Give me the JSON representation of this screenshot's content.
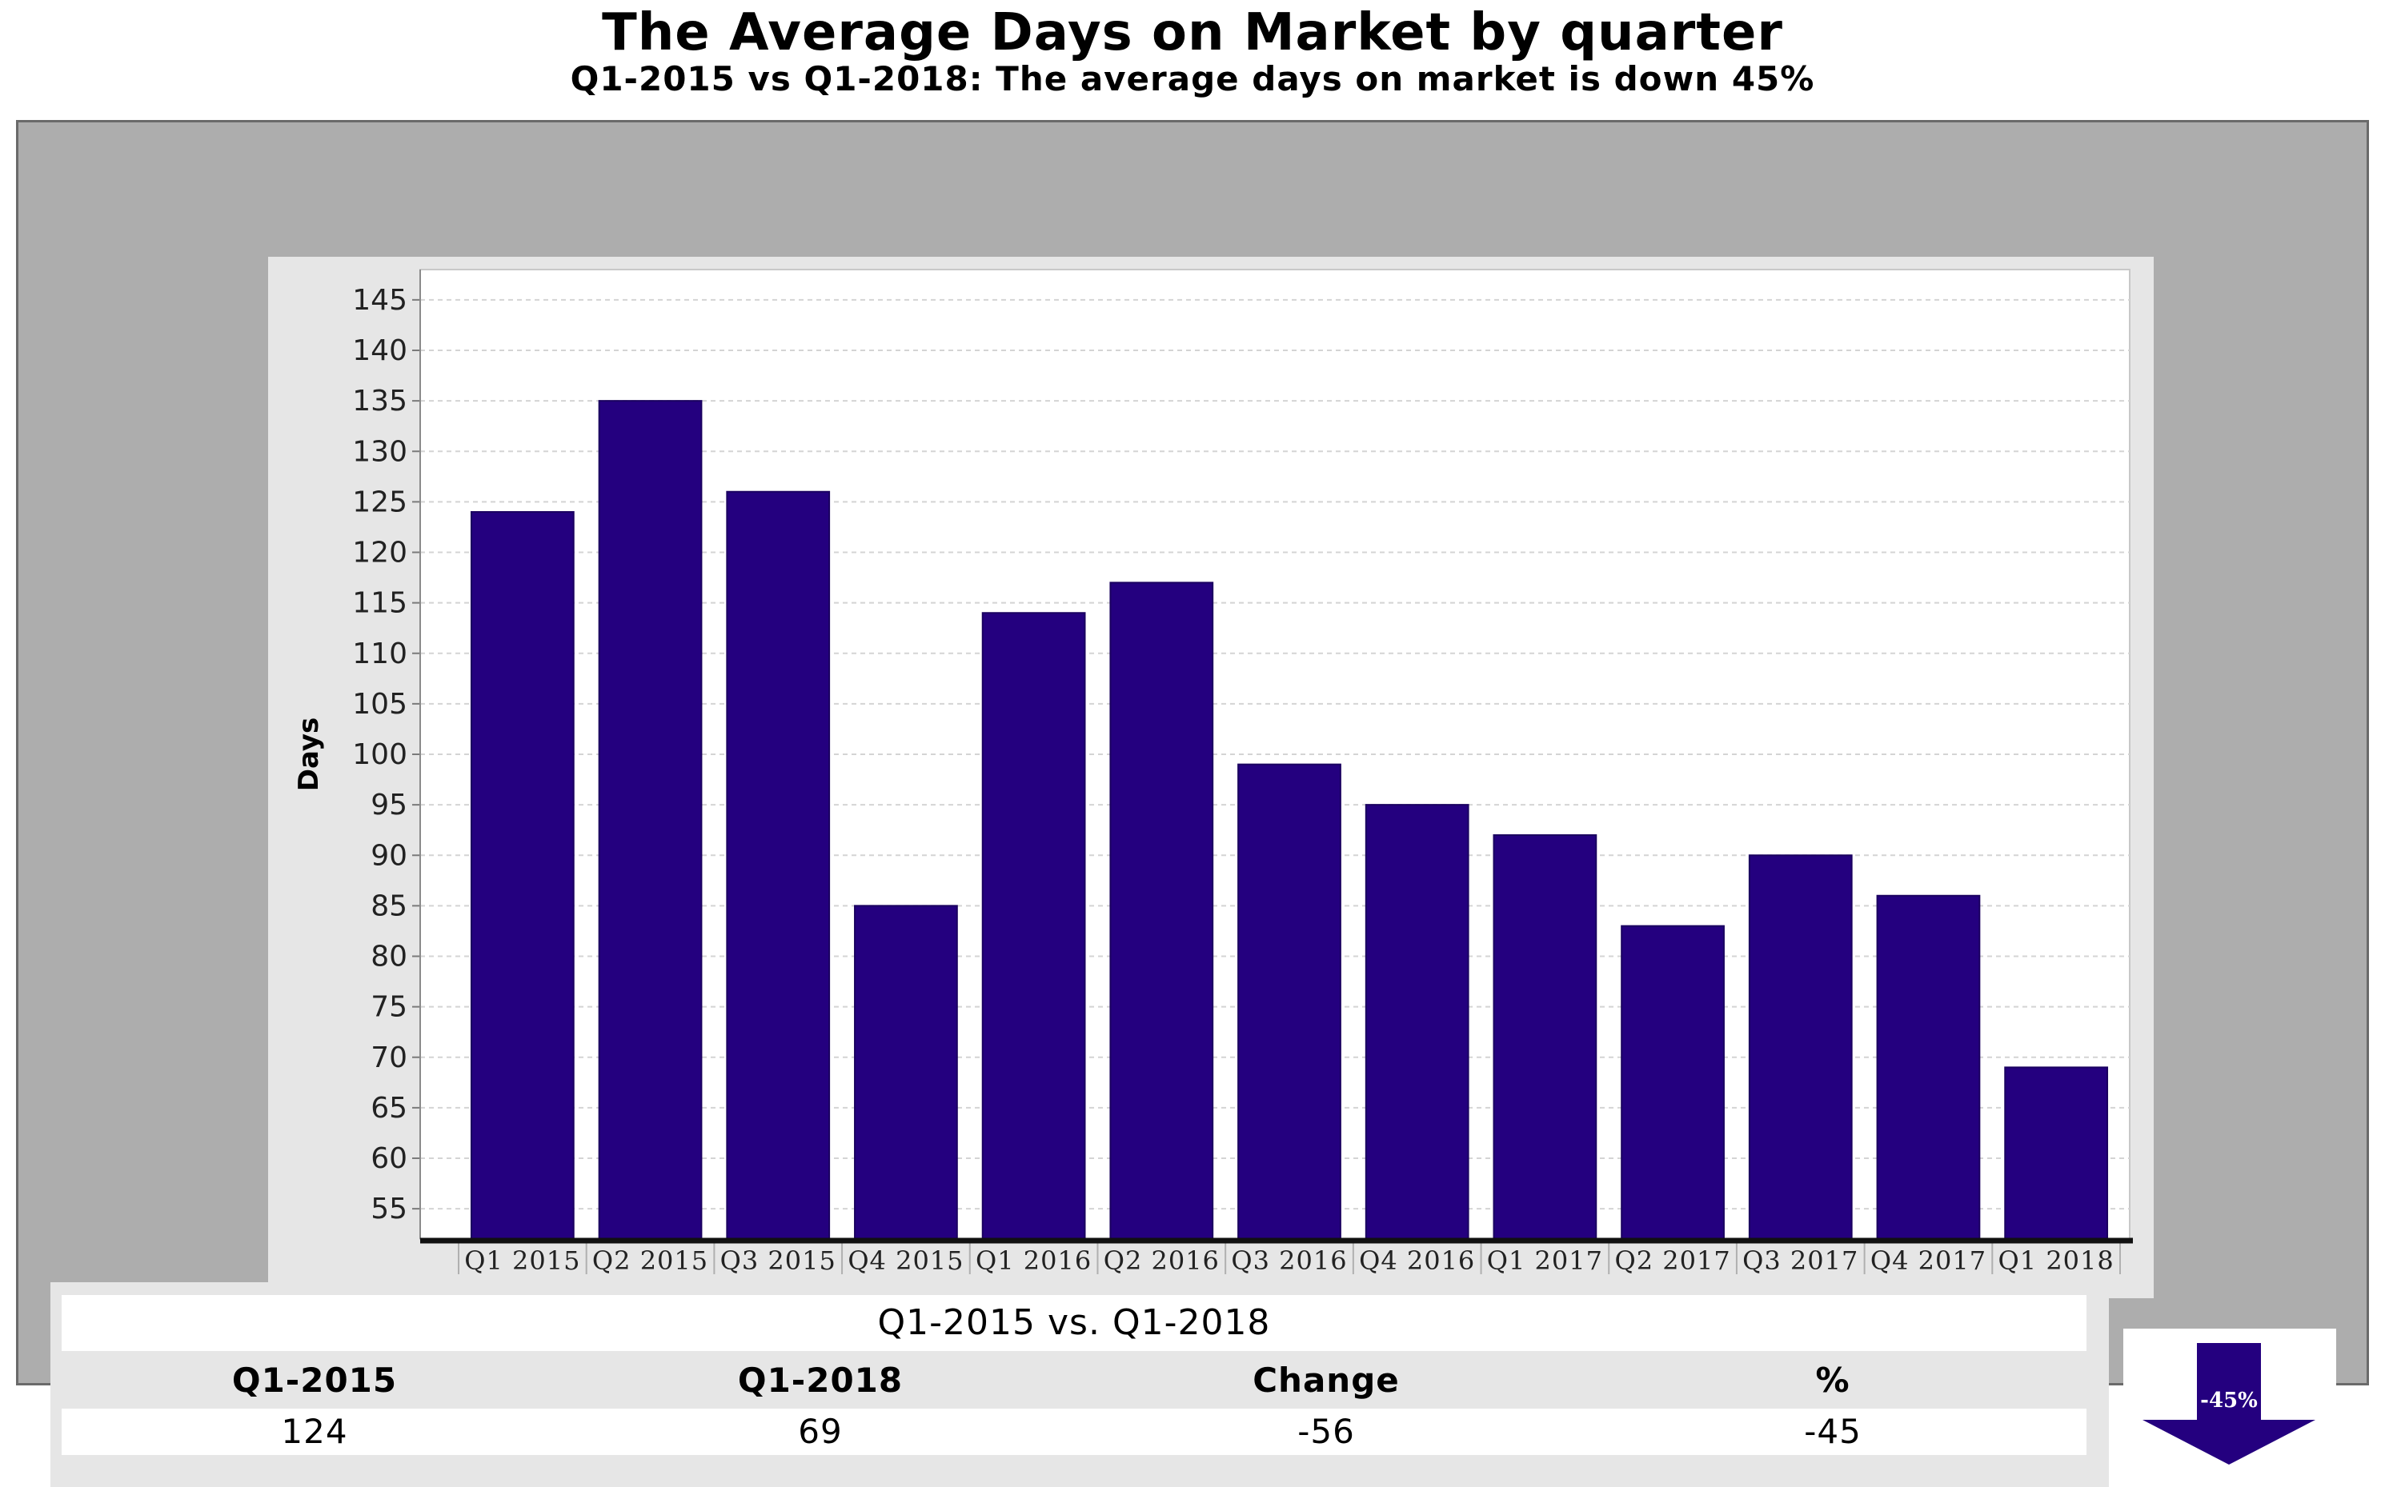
{
  "title": "The Average Days on Market by quarter",
  "subtitle": "Q1-2015 vs Q1-2018: The average days on market is down 45%",
  "chart_data": {
    "type": "bar",
    "categories": [
      "Q1 2015",
      "Q2 2015",
      "Q3 2015",
      "Q4 2015",
      "Q1 2016",
      "Q2 2016",
      "Q3 2016",
      "Q4 2016",
      "Q1 2017",
      "Q2 2017",
      "Q3 2017",
      "Q4 2017",
      "Q1 2018"
    ],
    "values": [
      124,
      135,
      126,
      85,
      114,
      117,
      99,
      95,
      92,
      83,
      90,
      86,
      69
    ],
    "ylabel": "Days",
    "xlabel": "",
    "ylim": [
      52,
      148
    ],
    "yticks": [
      55,
      60,
      65,
      70,
      75,
      80,
      85,
      90,
      95,
      100,
      105,
      110,
      115,
      120,
      125,
      130,
      135,
      140,
      145
    ],
    "grid": true,
    "bar_color": "#24007f"
  },
  "summary": {
    "heading": "Q1-2015 vs. Q1-2018",
    "columns": [
      "Q1-2015",
      "Q1-2018",
      "Change",
      "%"
    ],
    "values": [
      "124",
      "69",
      "-56",
      "-45"
    ]
  },
  "badge": {
    "label": "-45%",
    "icon": "down-arrow-icon",
    "color": "#24007f"
  }
}
